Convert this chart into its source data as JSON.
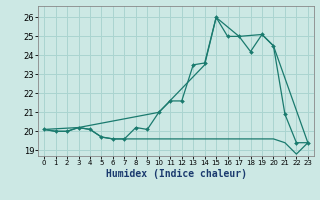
{
  "xlabel": "Humidex (Indice chaleur)",
  "bg_color": "#cce8e4",
  "grid_color": "#aad4d0",
  "line_color": "#1a7a6e",
  "xlim": [
    -0.5,
    23.5
  ],
  "ylim": [
    18.7,
    26.6
  ],
  "yticks": [
    19,
    20,
    21,
    22,
    23,
    24,
    25,
    26
  ],
  "xticks": [
    0,
    1,
    2,
    3,
    4,
    5,
    6,
    7,
    8,
    9,
    10,
    11,
    12,
    13,
    14,
    15,
    16,
    17,
    18,
    19,
    20,
    21,
    22,
    23
  ],
  "line1_x": [
    0,
    1,
    2,
    3,
    4,
    5,
    6,
    7,
    8,
    9,
    10,
    11,
    12,
    13,
    14,
    15,
    16,
    17,
    18,
    19,
    20,
    21,
    22,
    23
  ],
  "line1_y": [
    20.1,
    20.0,
    20.0,
    20.2,
    20.1,
    19.7,
    19.6,
    19.6,
    20.2,
    20.1,
    21.0,
    21.6,
    21.6,
    23.5,
    23.6,
    26.0,
    25.0,
    25.0,
    24.2,
    25.1,
    24.5,
    20.9,
    19.4,
    19.4
  ],
  "line2_x": [
    0,
    1,
    2,
    3,
    4,
    5,
    6,
    7,
    8,
    9,
    10,
    11,
    12,
    13,
    14,
    15,
    16,
    17,
    18,
    19,
    20,
    21,
    22,
    23
  ],
  "line2_y": [
    20.1,
    20.0,
    20.0,
    20.2,
    20.1,
    19.7,
    19.6,
    19.6,
    19.6,
    19.6,
    19.6,
    19.6,
    19.6,
    19.6,
    19.6,
    19.6,
    19.6,
    19.6,
    19.6,
    19.6,
    19.6,
    19.4,
    18.8,
    19.4
  ],
  "line3_x": [
    0,
    3,
    10,
    14,
    15,
    17,
    19,
    20,
    23
  ],
  "line3_y": [
    20.1,
    20.2,
    21.0,
    23.5,
    26.0,
    25.0,
    25.1,
    24.5,
    19.4
  ],
  "xlabel_color": "#1a3a6e",
  "xlabel_fontsize": 7
}
